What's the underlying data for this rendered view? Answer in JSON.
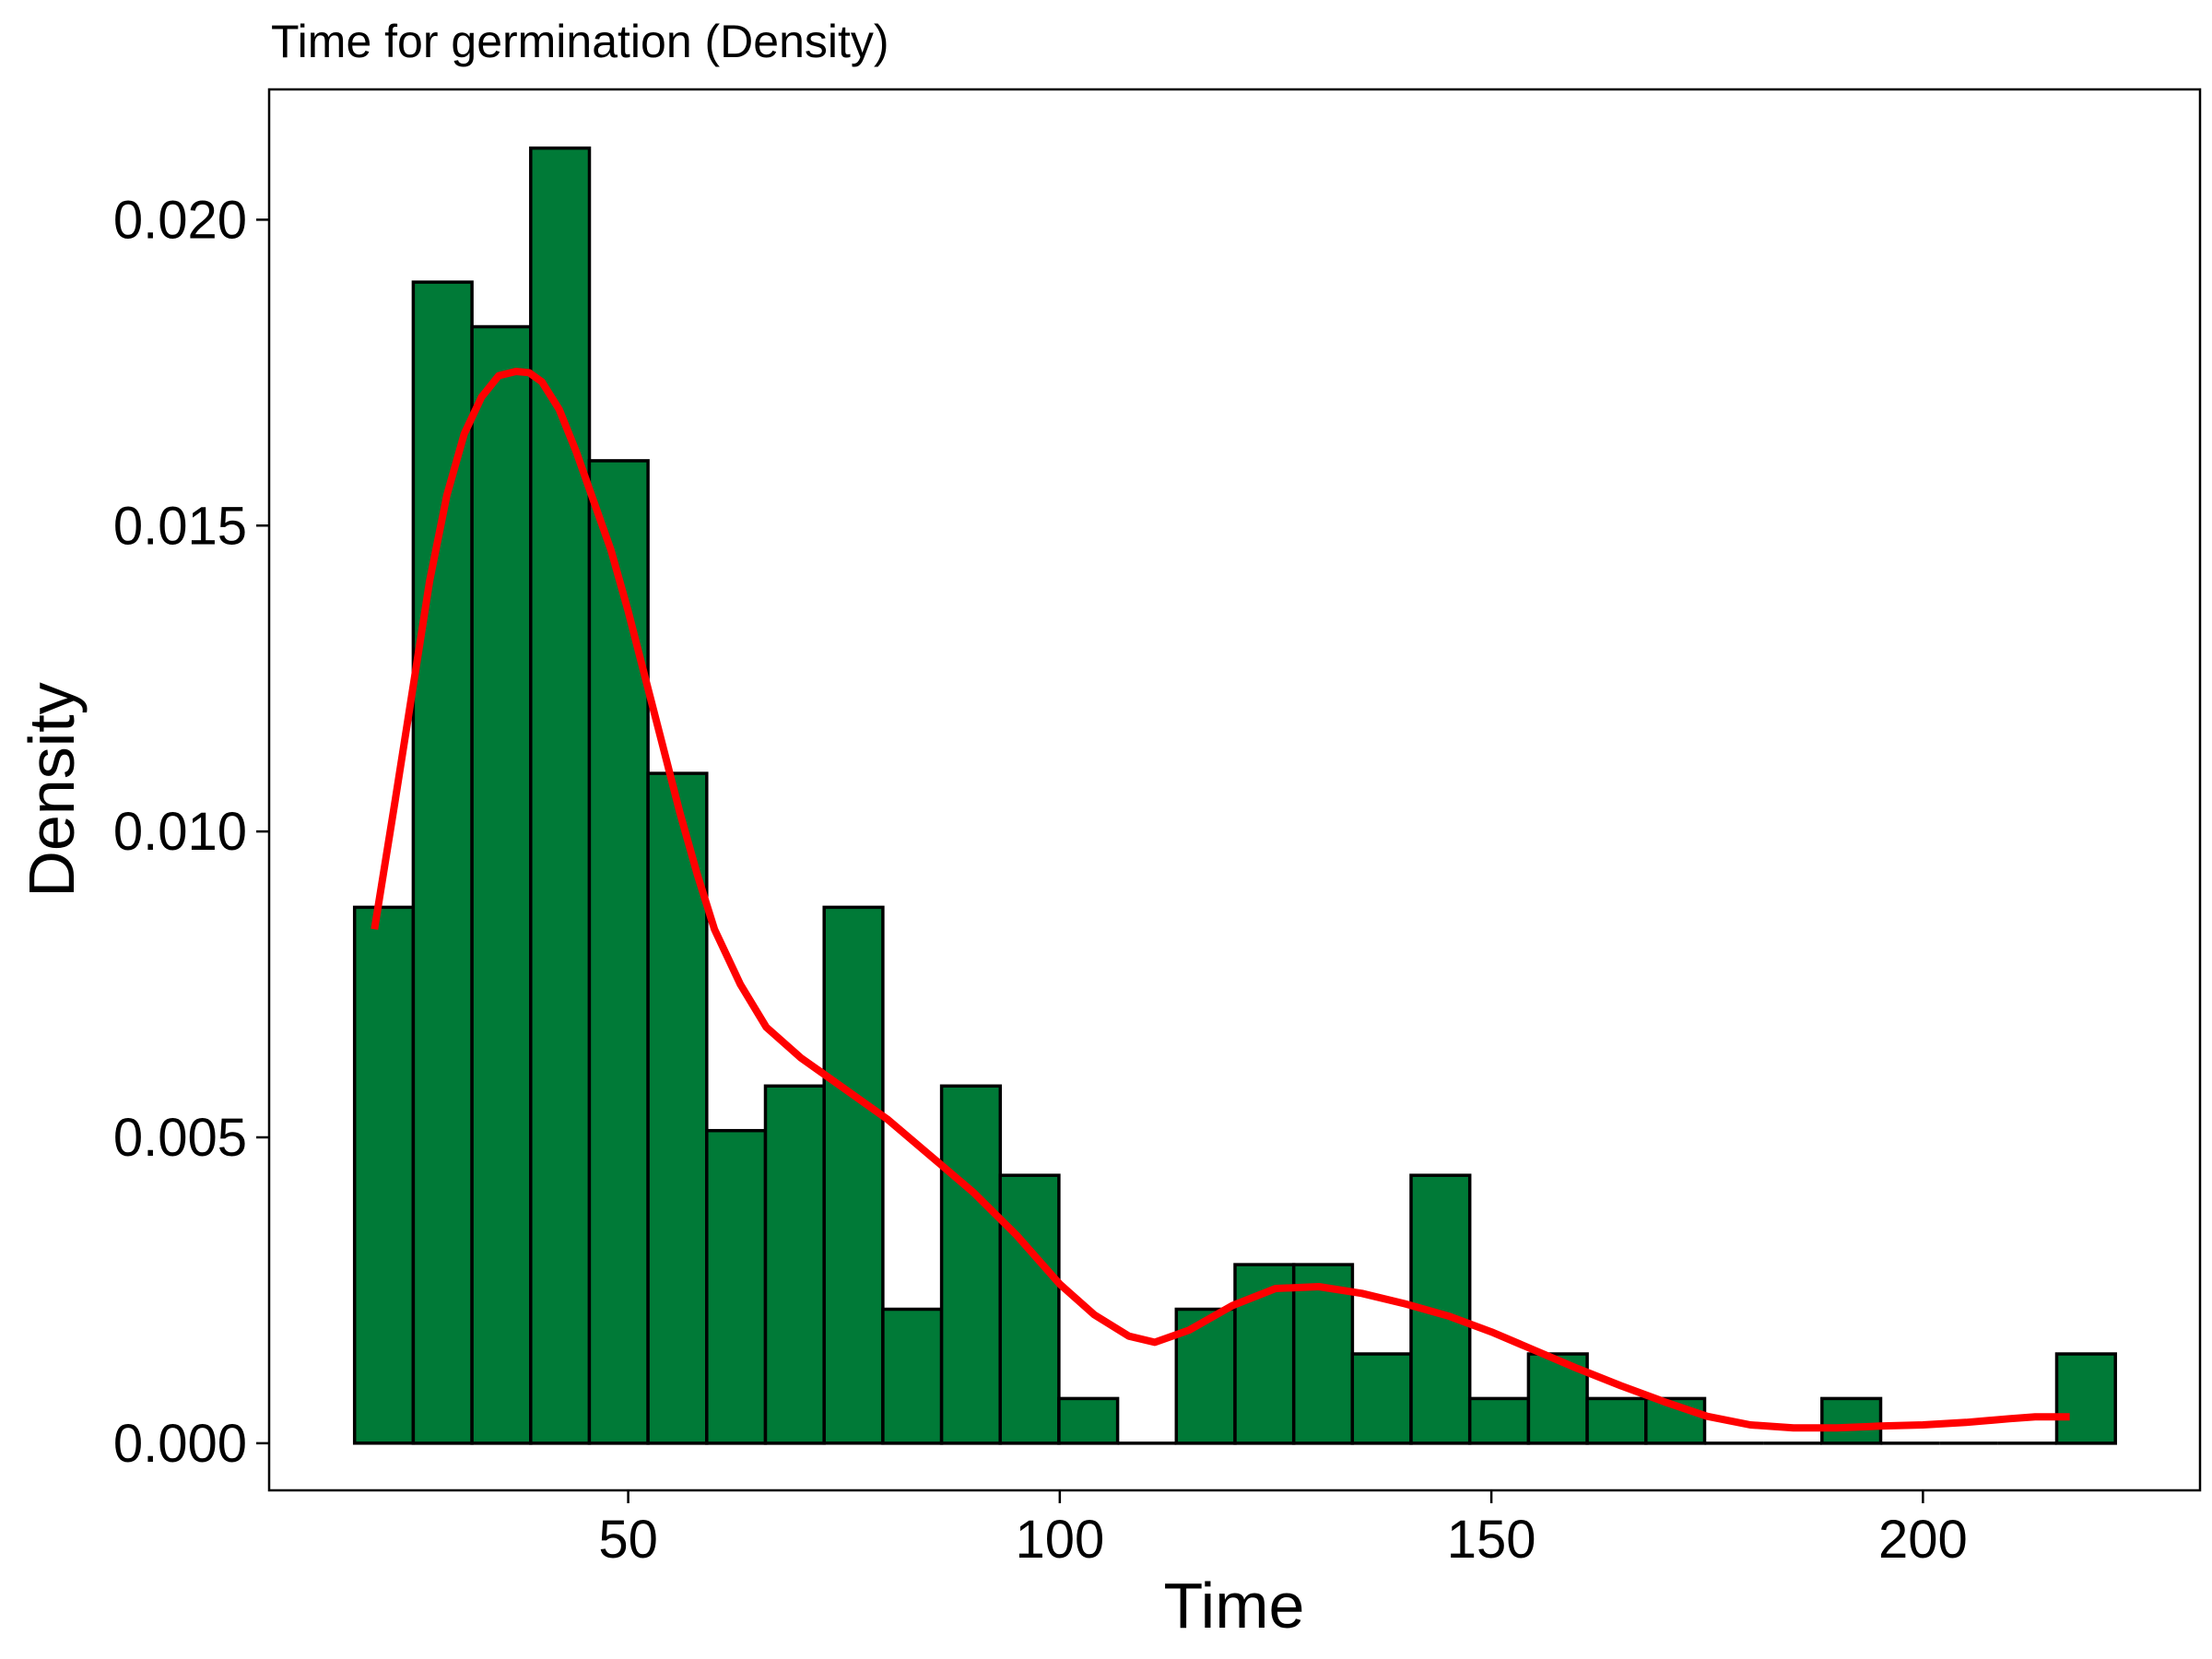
{
  "chart_data": {
    "type": "bar",
    "subtype": "histogram-with-density-curve",
    "title": "Time for germination (Density)",
    "xlabel": "Time",
    "ylabel": "Density",
    "xlim": [
      8.4,
      232.1
    ],
    "ylim": [
      -0.00077,
      0.02213
    ],
    "x_ticks": [
      50,
      100,
      150,
      200
    ],
    "x_tick_labels": [
      "50",
      "100",
      "150",
      "200"
    ],
    "y_ticks": [
      0,
      0.005,
      0.01,
      0.015,
      0.02
    ],
    "y_tick_labels": [
      "0.000",
      "0.005",
      "0.010",
      "0.015",
      "0.020"
    ],
    "grid": false,
    "legend": "none",
    "colors": {
      "bar_fill": "#007A37",
      "bar_outline": "#000000",
      "curve": "#FF0000"
    },
    "bins": [
      {
        "x0": 18.3,
        "x1": 25.1,
        "density": 0.00876
      },
      {
        "x0": 25.1,
        "x1": 31.9,
        "density": 0.01898
      },
      {
        "x0": 31.9,
        "x1": 38.7,
        "density": 0.01825
      },
      {
        "x0": 38.7,
        "x1": 45.5,
        "density": 0.02117
      },
      {
        "x0": 45.5,
        "x1": 52.3,
        "density": 0.01606
      },
      {
        "x0": 52.3,
        "x1": 59.1,
        "density": 0.01095
      },
      {
        "x0": 59.1,
        "x1": 65.9,
        "density": 0.00511
      },
      {
        "x0": 65.9,
        "x1": 72.7,
        "density": 0.00584
      },
      {
        "x0": 72.7,
        "x1": 79.5,
        "density": 0.00876
      },
      {
        "x0": 79.5,
        "x1": 86.3,
        "density": 0.00219
      },
      {
        "x0": 86.3,
        "x1": 93.1,
        "density": 0.00584
      },
      {
        "x0": 93.1,
        "x1": 99.9,
        "density": 0.00438
      },
      {
        "x0": 99.9,
        "x1": 106.7,
        "density": 0.00073
      },
      {
        "x0": 106.7,
        "x1": 113.5,
        "density": 0
      },
      {
        "x0": 113.5,
        "x1": 120.3,
        "density": 0.00219
      },
      {
        "x0": 120.3,
        "x1": 127.1,
        "density": 0.00292
      },
      {
        "x0": 127.1,
        "x1": 133.9,
        "density": 0.00292
      },
      {
        "x0": 133.9,
        "x1": 140.7,
        "density": 0.00146
      },
      {
        "x0": 140.7,
        "x1": 147.5,
        "density": 0.00438
      },
      {
        "x0": 147.5,
        "x1": 154.3,
        "density": 0.00073
      },
      {
        "x0": 154.3,
        "x1": 161.1,
        "density": 0.00146
      },
      {
        "x0": 161.1,
        "x1": 167.9,
        "density": 0.00073
      },
      {
        "x0": 167.9,
        "x1": 174.7,
        "density": 0.00073
      },
      {
        "x0": 174.7,
        "x1": 181.5,
        "density": 0
      },
      {
        "x0": 181.5,
        "x1": 188.3,
        "density": 0
      },
      {
        "x0": 188.3,
        "x1": 195.1,
        "density": 0.00073
      },
      {
        "x0": 195.1,
        "x1": 201.9,
        "density": 0
      },
      {
        "x0": 201.9,
        "x1": 208.7,
        "density": 0
      },
      {
        "x0": 208.7,
        "x1": 215.5,
        "density": 0
      },
      {
        "x0": 215.5,
        "x1": 222.3,
        "density": 0.00146
      }
    ],
    "density_curve": {
      "x": [
        20.6,
        23.0,
        25.0,
        27.0,
        29.0,
        31.0,
        33.0,
        35.0,
        37.0,
        38.5,
        40.0,
        42.0,
        44.0,
        46.0,
        48.0,
        50.0,
        52.0,
        54.0,
        56.0,
        58.0,
        60.0,
        63.0,
        66.0,
        70.0,
        75.0,
        80.0,
        85.0,
        90.0,
        95.0,
        100.0,
        104.0,
        108.0,
        111.0,
        115.0,
        120.0,
        125.0,
        130.0,
        135.0,
        140.0,
        145.0,
        150.0,
        155.0,
        160.0,
        165.0,
        170.0,
        175.0,
        180.0,
        185.0,
        190.0,
        195.0,
        200.0,
        205.0,
        210.0,
        213.0,
        217.0
      ],
      "y": [
        0.0084,
        0.0105,
        0.0123,
        0.0141,
        0.0155,
        0.0165,
        0.0171,
        0.01745,
        0.01752,
        0.0175,
        0.01735,
        0.0169,
        0.0162,
        0.0154,
        0.0146,
        0.0136,
        0.0125,
        0.0114,
        0.0103,
        0.0093,
        0.0084,
        0.0075,
        0.0068,
        0.0063,
        0.0058,
        0.0053,
        0.0047,
        0.0041,
        0.0034,
        0.0026,
        0.0021,
        0.00175,
        0.00165,
        0.00185,
        0.00225,
        0.00253,
        0.00256,
        0.00245,
        0.00228,
        0.00208,
        0.00182,
        0.00152,
        0.00122,
        0.00094,
        0.00068,
        0.00044,
        0.0003,
        0.00025,
        0.00025,
        0.00028,
        0.0003,
        0.00034,
        0.0004,
        0.00043,
        0.00043
      ]
    }
  }
}
